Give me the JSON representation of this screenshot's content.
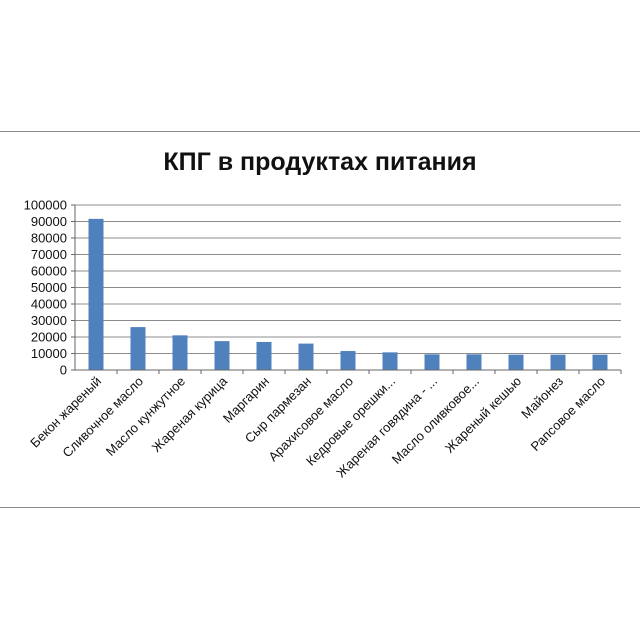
{
  "chart_data": {
    "type": "bar",
    "title": "КПГ в продуктах питания",
    "xlabel": "",
    "ylabel": "",
    "ylim": [
      0,
      100000
    ],
    "yticks": [
      0,
      10000,
      20000,
      30000,
      40000,
      50000,
      60000,
      70000,
      80000,
      90000,
      100000
    ],
    "grid": true,
    "legend": "none",
    "bar_color": "#4f81bd",
    "categories": [
      "Бекон жареный",
      "Сливочное масло",
      "Масло кунжутное",
      "Жареная курица",
      "Маргарин",
      "Сыр пармезан",
      "Арахисовое масло",
      "Кедровые орешки...",
      "Жареная говядина - ...",
      "Масло оливковое...",
      "Жареный кешью",
      "Майонез",
      "Рапсовое масло"
    ],
    "values": [
      91600,
      26000,
      21000,
      17500,
      17000,
      16000,
      11500,
      10700,
      9500,
      9500,
      9300,
      9300,
      9300
    ]
  }
}
